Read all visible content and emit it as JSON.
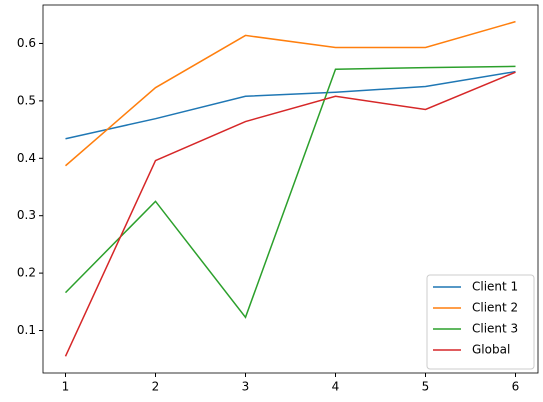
{
  "chart_data": {
    "type": "line",
    "x": [
      1,
      2,
      3,
      4,
      5,
      6
    ],
    "series": [
      {
        "name": "Client 1",
        "color": "#1f77b4",
        "values": [
          0.434,
          0.469,
          0.508,
          0.515,
          0.525,
          0.551
        ]
      },
      {
        "name": "Client 2",
        "color": "#ff7f0e",
        "values": [
          0.387,
          0.523,
          0.614,
          0.593,
          0.593,
          0.638
        ]
      },
      {
        "name": "Client 3",
        "color": "#2ca02c",
        "values": [
          0.166,
          0.325,
          0.123,
          0.555,
          0.558,
          0.56
        ]
      },
      {
        "name": "Global",
        "color": "#d62728",
        "values": [
          0.055,
          0.396,
          0.464,
          0.508,
          0.485,
          0.55
        ]
      }
    ],
    "xlim": [
      0.75,
      6.25
    ],
    "xticks": [
      1,
      2,
      3,
      4,
      5,
      6
    ],
    "ylim": [
      0.026,
      0.667
    ],
    "yticks": [
      0.1,
      0.2,
      0.3,
      0.4,
      0.5,
      0.6
    ],
    "legend": "lower right"
  }
}
